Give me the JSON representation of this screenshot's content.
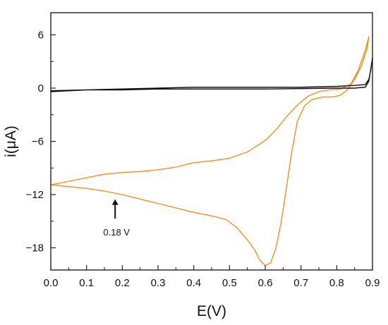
{
  "chart_data": {
    "type": "line",
    "title": "",
    "xlabel": "E(V)",
    "ylabel": "i(μA)",
    "xlim": [
      0.0,
      0.9
    ],
    "ylim": [
      -20.5,
      8.5
    ],
    "x_ticks": [
      0.0,
      0.1,
      0.2,
      0.3,
      0.4,
      0.5,
      0.6,
      0.7,
      0.8,
      0.9
    ],
    "x_tick_labels": [
      "0.0",
      "0.1",
      "0.2",
      "0.3",
      "0.4",
      "0.5",
      "0.6",
      "0.7",
      "0.8",
      "0.9"
    ],
    "y_ticks": [
      6,
      0,
      -6,
      -12,
      -18
    ],
    "y_tick_labels": [
      "6",
      "0",
      "−6",
      "−12",
      "−18"
    ],
    "grid": false,
    "legend": "none",
    "series": [
      {
        "color": "#f28c1f",
        "points": [
          [
            0.0,
            -10.9
          ],
          [
            0.05,
            -10.5
          ],
          [
            0.1,
            -10.1
          ],
          [
            0.15,
            -9.7
          ],
          [
            0.2,
            -9.5
          ],
          [
            0.25,
            -9.4
          ],
          [
            0.3,
            -9.2
          ],
          [
            0.35,
            -8.9
          ],
          [
            0.4,
            -8.4
          ],
          [
            0.45,
            -8.2
          ],
          [
            0.5,
            -7.9
          ],
          [
            0.55,
            -7.2
          ],
          [
            0.6,
            -5.9
          ],
          [
            0.63,
            -4.7
          ],
          [
            0.66,
            -3.2
          ],
          [
            0.69,
            -1.9
          ],
          [
            0.72,
            -0.9
          ],
          [
            0.75,
            -0.4
          ],
          [
            0.78,
            -0.2
          ],
          [
            0.81,
            -0.1
          ],
          [
            0.84,
            0.5
          ],
          [
            0.86,
            2.0
          ],
          [
            0.88,
            4.3
          ],
          [
            0.89,
            5.8
          ],
          [
            0.885,
            4.5
          ],
          [
            0.87,
            2.6
          ],
          [
            0.85,
            1.0
          ],
          [
            0.83,
            -0.2
          ],
          [
            0.81,
            -0.8
          ],
          [
            0.79,
            -1.0
          ],
          [
            0.76,
            -1.0
          ],
          [
            0.73,
            -1.3
          ],
          [
            0.71,
            -2.0
          ],
          [
            0.69,
            -3.7
          ],
          [
            0.675,
            -7.0
          ],
          [
            0.66,
            -11.0
          ],
          [
            0.645,
            -15.0
          ],
          [
            0.63,
            -18.0
          ],
          [
            0.615,
            -19.7
          ],
          [
            0.6,
            -20.0
          ],
          [
            0.585,
            -19.4
          ],
          [
            0.57,
            -18.2
          ],
          [
            0.55,
            -17.1
          ],
          [
            0.52,
            -15.7
          ],
          [
            0.49,
            -14.8
          ],
          [
            0.45,
            -14.4
          ],
          [
            0.4,
            -14.0
          ],
          [
            0.35,
            -13.5
          ],
          [
            0.3,
            -13.0
          ],
          [
            0.25,
            -12.5
          ],
          [
            0.2,
            -12.0
          ],
          [
            0.15,
            -11.6
          ],
          [
            0.1,
            -11.3
          ],
          [
            0.05,
            -11.1
          ],
          [
            0.0,
            -10.9
          ]
        ]
      },
      {
        "color": "#111111",
        "points": [
          [
            0.0,
            -0.4
          ],
          [
            0.1,
            -0.2
          ],
          [
            0.2,
            -0.1
          ],
          [
            0.3,
            0.0
          ],
          [
            0.4,
            0.1
          ],
          [
            0.5,
            0.1
          ],
          [
            0.6,
            0.1
          ],
          [
            0.7,
            0.1
          ],
          [
            0.8,
            0.2
          ],
          [
            0.85,
            0.3
          ],
          [
            0.88,
            0.4
          ],
          [
            0.89,
            1.0
          ],
          [
            0.895,
            2.0
          ],
          [
            0.9,
            3.4
          ],
          [
            0.895,
            2.1
          ],
          [
            0.89,
            0.8
          ],
          [
            0.88,
            0.1
          ],
          [
            0.85,
            0.0
          ],
          [
            0.8,
            0.0
          ],
          [
            0.7,
            -0.05
          ],
          [
            0.6,
            -0.1
          ],
          [
            0.5,
            -0.1
          ],
          [
            0.4,
            -0.1
          ],
          [
            0.3,
            -0.1
          ],
          [
            0.2,
            -0.2
          ],
          [
            0.1,
            -0.2
          ],
          [
            0.0,
            -0.3
          ]
        ]
      }
    ],
    "annotation": {
      "text": "0.18 V",
      "x": 0.18,
      "arrow_from_y": -14.7,
      "arrow_to_y": -12.6
    }
  }
}
